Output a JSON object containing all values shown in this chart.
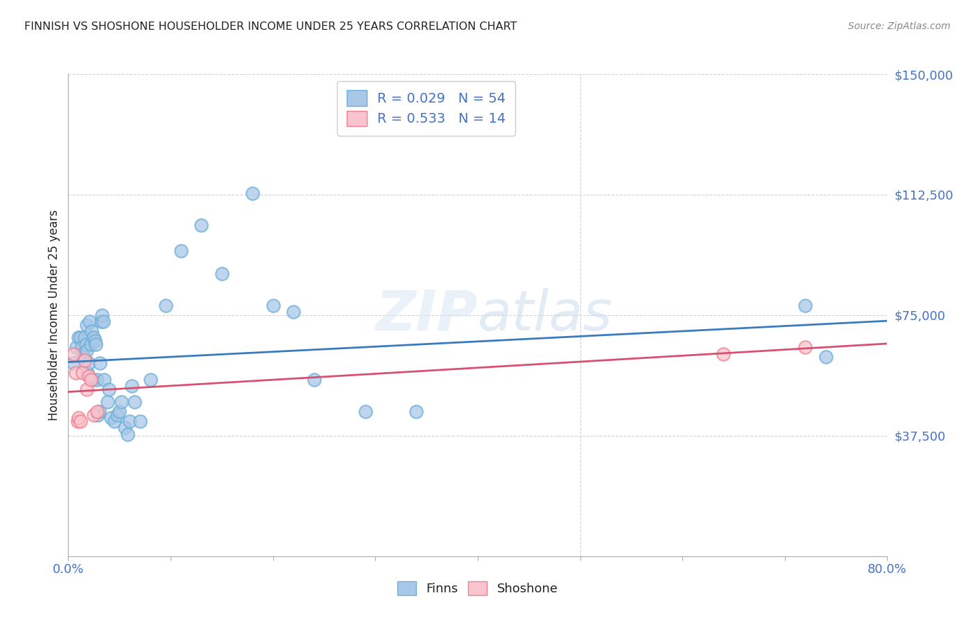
{
  "title": "FINNISH VS SHOSHONE HOUSEHOLDER INCOME UNDER 25 YEARS CORRELATION CHART",
  "source": "Source: ZipAtlas.com",
  "ylabel": "Householder Income Under 25 years",
  "watermark": "ZIPatlas",
  "ylim": [
    0,
    150000
  ],
  "xlim": [
    0.0,
    0.8
  ],
  "yticks": [
    0,
    37500,
    75000,
    112500,
    150000
  ],
  "ytick_labels": [
    "",
    "$37,500",
    "$75,000",
    "$112,500",
    "$150,000"
  ],
  "xtick_show": [
    0.0,
    0.8
  ],
  "xtick_minor": [
    0.1,
    0.2,
    0.3,
    0.4,
    0.5,
    0.6,
    0.7
  ],
  "finn_R": 0.029,
  "finn_N": 54,
  "shoshone_R": 0.533,
  "shoshone_N": 14,
  "finn_color": "#a8c8e8",
  "finn_edge_color": "#6baed6",
  "shoshone_color": "#f9c4cd",
  "shoshone_edge_color": "#f08090",
  "trend_finn_color": "#3a7abf",
  "trend_shoshone_color": "#d94f70",
  "label_color": "#4472c4",
  "title_color": "#222222",
  "source_color": "#888888",
  "grid_color": "#cccccc",
  "background_color": "#ffffff",
  "finn_scatter_x": [
    0.005,
    0.008,
    0.01,
    0.012,
    0.013,
    0.014,
    0.015,
    0.016,
    0.017,
    0.018,
    0.018,
    0.019,
    0.02,
    0.021,
    0.022,
    0.023,
    0.024,
    0.025,
    0.026,
    0.027,
    0.028,
    0.029,
    0.03,
    0.031,
    0.032,
    0.033,
    0.034,
    0.035,
    0.038,
    0.04,
    0.042,
    0.045,
    0.048,
    0.05,
    0.052,
    0.055,
    0.058,
    0.06,
    0.062,
    0.065,
    0.07,
    0.08,
    0.095,
    0.11,
    0.13,
    0.15,
    0.18,
    0.2,
    0.22,
    0.24,
    0.29,
    0.34,
    0.72,
    0.74
  ],
  "finn_scatter_y": [
    60000,
    65000,
    68000,
    68000,
    65000,
    63000,
    62000,
    68000,
    66000,
    72000,
    64000,
    57000,
    60000,
    73000,
    66000,
    70000,
    55000,
    68000,
    67000,
    66000,
    55000,
    44000,
    45000,
    60000,
    73000,
    75000,
    73000,
    55000,
    48000,
    52000,
    43000,
    42000,
    44000,
    45000,
    48000,
    40000,
    38000,
    42000,
    53000,
    48000,
    42000,
    55000,
    78000,
    95000,
    103000,
    88000,
    113000,
    78000,
    76000,
    55000,
    45000,
    45000,
    78000,
    62000
  ],
  "shoshone_scatter_x": [
    0.005,
    0.007,
    0.009,
    0.01,
    0.012,
    0.014,
    0.016,
    0.018,
    0.02,
    0.022,
    0.025,
    0.028,
    0.64,
    0.72
  ],
  "shoshone_scatter_y": [
    63000,
    57000,
    42000,
    43000,
    42000,
    57000,
    61000,
    52000,
    56000,
    55000,
    44000,
    45000,
    63000,
    65000
  ]
}
